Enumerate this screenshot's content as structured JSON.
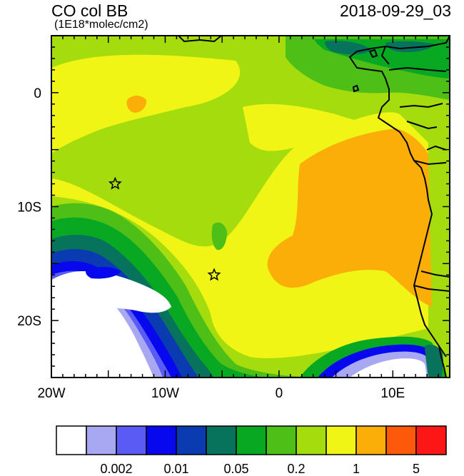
{
  "header": {
    "title": "CO col BB",
    "units": "(1E18*molec/cm2)",
    "timestamp": "2018-09-29_03"
  },
  "axes": {
    "x_ticks": [
      {
        "value": -20,
        "label": "20W"
      },
      {
        "value": -10,
        "label": "10W"
      },
      {
        "value": 0,
        "label": "0"
      },
      {
        "value": 10,
        "label": "10E"
      }
    ],
    "y_ticks": [
      {
        "value": 0,
        "label": "0"
      },
      {
        "value": -10,
        "label": "10S"
      },
      {
        "value": -20,
        "label": "20S"
      }
    ],
    "lon_range": [
      -20,
      15
    ],
    "lat_range": [
      -25,
      5
    ]
  },
  "colorbar": {
    "colors": [
      "#ffffff",
      "#a7a7f2",
      "#5a5af5",
      "#0808ee",
      "#0a3bb0",
      "#07735c",
      "#09a822",
      "#4dbf16",
      "#a5dc0d",
      "#f0f515",
      "#fbae08",
      "#fc5a0a",
      "#fc1616"
    ],
    "labels": [
      {
        "after_box": 2,
        "text": "0.002"
      },
      {
        "after_box": 4,
        "text": "0.01"
      },
      {
        "after_box": 6,
        "text": "0.05"
      },
      {
        "after_box": 8,
        "text": "0.2"
      },
      {
        "after_box": 10,
        "text": "1"
      },
      {
        "after_box": 12,
        "text": "5"
      }
    ]
  },
  "markers": [
    {
      "lon": -14.4,
      "lat": -8.0,
      "symbol": "star"
    },
    {
      "lon": -5.7,
      "lat": -16.0,
      "symbol": "star"
    }
  ]
}
